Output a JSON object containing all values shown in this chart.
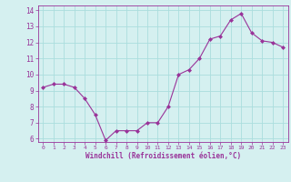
{
  "x": [
    0,
    1,
    2,
    3,
    4,
    5,
    6,
    7,
    8,
    9,
    10,
    11,
    12,
    13,
    14,
    15,
    16,
    17,
    18,
    19,
    20,
    21,
    22,
    23
  ],
  "y": [
    9.2,
    9.4,
    9.4,
    9.2,
    8.5,
    7.5,
    5.9,
    6.5,
    6.5,
    6.5,
    7.0,
    7.0,
    8.0,
    10.0,
    10.3,
    11.0,
    12.2,
    12.4,
    13.4,
    13.8,
    12.6,
    12.1,
    12.0,
    11.7
  ],
  "ylim": [
    6,
    14
  ],
  "yticks": [
    6,
    7,
    8,
    9,
    10,
    11,
    12,
    13,
    14
  ],
  "xticks": [
    0,
    1,
    2,
    3,
    4,
    5,
    6,
    7,
    8,
    9,
    10,
    11,
    12,
    13,
    14,
    15,
    16,
    17,
    18,
    19,
    20,
    21,
    22,
    23
  ],
  "xlabel": "Windchill (Refroidissement éolien,°C)",
  "line_color": "#993399",
  "marker_color": "#993399",
  "bg_color": "#d5f0f0",
  "grid_color": "#aadddd",
  "tick_color": "#993399",
  "label_color": "#993399",
  "figsize": [
    3.2,
    2.0
  ],
  "dpi": 100
}
